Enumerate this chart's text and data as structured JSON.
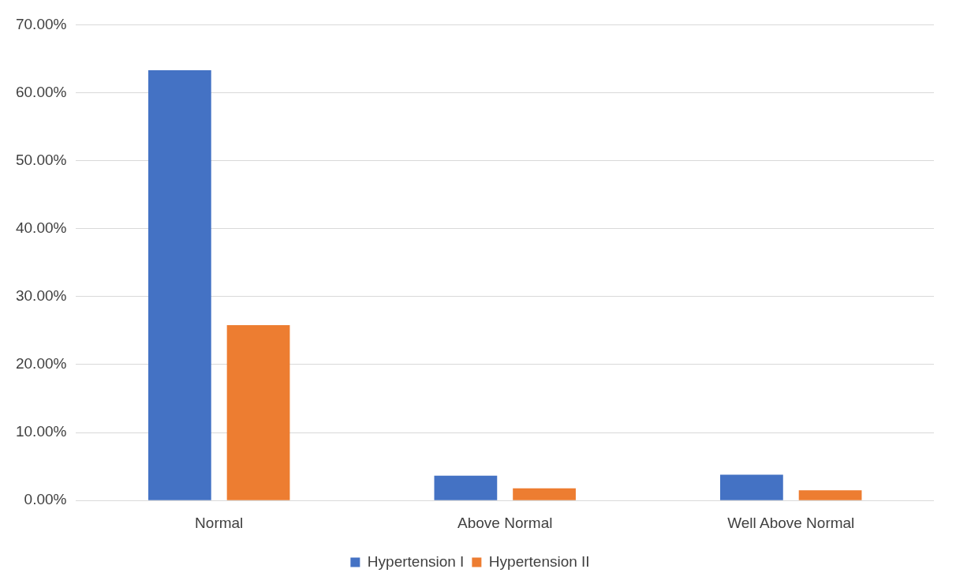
{
  "chart_data": {
    "type": "bar",
    "categories": [
      "Normal",
      "Above Normal",
      "Well Above Normal"
    ],
    "series": [
      {
        "name": "Hypertension I",
        "color": "#4472c4",
        "values": [
          63.3,
          3.65,
          3.8
        ]
      },
      {
        "name": "Hypertension II",
        "color": "#ed7d31",
        "values": [
          25.8,
          1.8,
          1.5
        ]
      }
    ],
    "ylim": [
      0,
      70
    ],
    "yticks": [
      {
        "value": 0,
        "label": "0.00%"
      },
      {
        "value": 10,
        "label": "10.00%"
      },
      {
        "value": 20,
        "label": "20.00%"
      },
      {
        "value": 30,
        "label": "30.00%"
      },
      {
        "value": 40,
        "label": "40.00%"
      },
      {
        "value": 50,
        "label": "50.00%"
      },
      {
        "value": 60,
        "label": "60.00%"
      },
      {
        "value": 70,
        "label": "70.00%"
      }
    ],
    "grid": "y",
    "legend": "bottom"
  }
}
